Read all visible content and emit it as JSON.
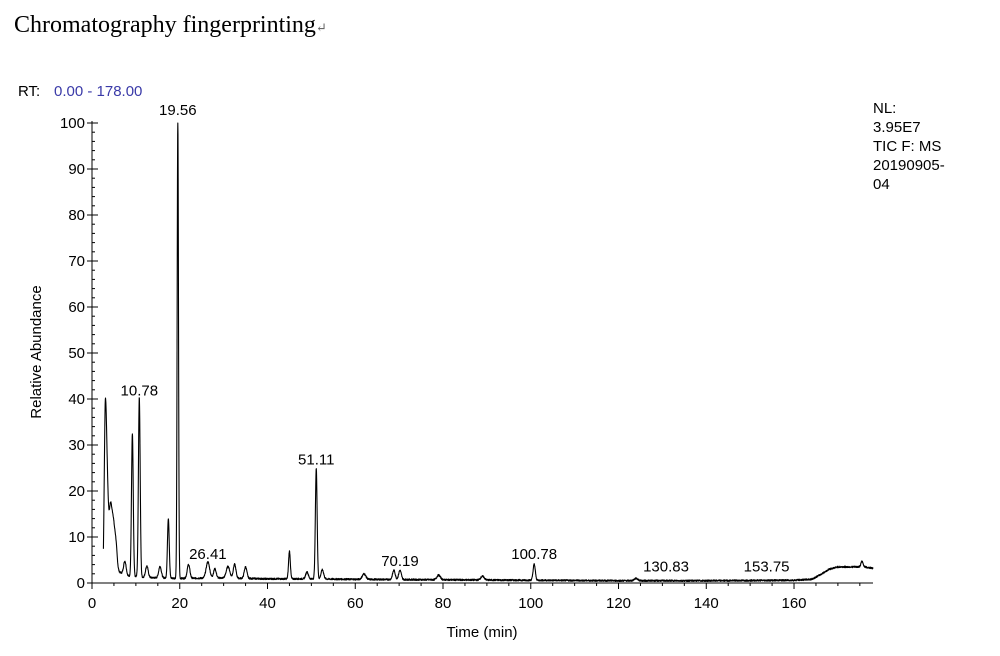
{
  "page": {
    "heading": "Chromatography fingerprinting",
    "heading_mark": "↵"
  },
  "chart_data": {
    "type": "line",
    "rt_label": "RT:",
    "rt_range": "0.00 - 178.00",
    "info_lines": [
      "NL:",
      "3.95E7",
      "TIC F:   MS",
      "20190905-",
      "04"
    ],
    "xlabel": "Time (min)",
    "ylabel": "Relative Abundance",
    "xlim": [
      0,
      178
    ],
    "ylim": [
      0,
      100
    ],
    "xticks": [
      0,
      20,
      40,
      60,
      80,
      100,
      120,
      140,
      160
    ],
    "yticks": [
      0,
      10,
      20,
      30,
      40,
      50,
      60,
      70,
      80,
      90,
      100
    ],
    "peak_labels": [
      {
        "x": 10.78,
        "y": 39,
        "label": "10.78"
      },
      {
        "x": 19.56,
        "y": 100,
        "label": "19.56"
      },
      {
        "x": 26.41,
        "y": 3.5,
        "label": "26.41"
      },
      {
        "x": 51.11,
        "y": 24,
        "label": "51.11"
      },
      {
        "x": 70.19,
        "y": 2,
        "label": "70.19"
      },
      {
        "x": 100.78,
        "y": 3.5,
        "label": "100.78"
      },
      {
        "x": 130.83,
        "y": 0.8,
        "label": "130.83"
      },
      {
        "x": 153.75,
        "y": 0.8,
        "label": "153.75"
      }
    ],
    "trace": {
      "baseline": [
        [
          2.6,
          0
        ],
        [
          3,
          7
        ],
        [
          4,
          4
        ],
        [
          6,
          2.5
        ],
        [
          8,
          1.5
        ],
        [
          12,
          1.2
        ],
        [
          20,
          1.0
        ],
        [
          30,
          1.1
        ],
        [
          40,
          0.9
        ],
        [
          50,
          0.9
        ],
        [
          60,
          0.8
        ],
        [
          80,
          0.7
        ],
        [
          100,
          0.6
        ],
        [
          120,
          0.5
        ],
        [
          140,
          0.5
        ],
        [
          160,
          0.6
        ],
        [
          164,
          0.8
        ],
        [
          166,
          1.8
        ],
        [
          168,
          3.0
        ],
        [
          170,
          3.5
        ],
        [
          176,
          3.5
        ],
        [
          178,
          3.2
        ]
      ],
      "peaks": [
        {
          "x": 3.0,
          "h": 25,
          "w": 0.25
        },
        {
          "x": 3.4,
          "h": 17,
          "w": 0.3
        },
        {
          "x": 4.2,
          "h": 12,
          "w": 0.3
        },
        {
          "x": 4.8,
          "h": 9,
          "w": 0.3
        },
        {
          "x": 5.4,
          "h": 6,
          "w": 0.3
        },
        {
          "x": 7.5,
          "h": 3,
          "w": 0.3
        },
        {
          "x": 9.2,
          "h": 31,
          "w": 0.2
        },
        {
          "x": 10.78,
          "h": 39,
          "w": 0.2
        },
        {
          "x": 12.5,
          "h": 2.5,
          "w": 0.3
        },
        {
          "x": 15.5,
          "h": 2.5,
          "w": 0.3
        },
        {
          "x": 17.4,
          "h": 13,
          "w": 0.2
        },
        {
          "x": 19.56,
          "h": 100,
          "w": 0.15
        },
        {
          "x": 22,
          "h": 3,
          "w": 0.3
        },
        {
          "x": 26.41,
          "h": 3.5,
          "w": 0.4
        },
        {
          "x": 28,
          "h": 2,
          "w": 0.3
        },
        {
          "x": 31,
          "h": 2.5,
          "w": 0.4
        },
        {
          "x": 32.5,
          "h": 3,
          "w": 0.3
        },
        {
          "x": 35,
          "h": 2.5,
          "w": 0.3
        },
        {
          "x": 45,
          "h": 6,
          "w": 0.2
        },
        {
          "x": 49,
          "h": 1.5,
          "w": 0.3
        },
        {
          "x": 51.11,
          "h": 24,
          "w": 0.2
        },
        {
          "x": 52.5,
          "h": 2,
          "w": 0.3
        },
        {
          "x": 62,
          "h": 1.2,
          "w": 0.4
        },
        {
          "x": 68.8,
          "h": 2,
          "w": 0.3
        },
        {
          "x": 70.19,
          "h": 2,
          "w": 0.3
        },
        {
          "x": 79,
          "h": 1,
          "w": 0.4
        },
        {
          "x": 89,
          "h": 0.8,
          "w": 0.4
        },
        {
          "x": 100.78,
          "h": 3.5,
          "w": 0.25
        },
        {
          "x": 124,
          "h": 0.5,
          "w": 0.4
        },
        {
          "x": 175.5,
          "h": 1.2,
          "w": 0.25
        }
      ]
    }
  }
}
